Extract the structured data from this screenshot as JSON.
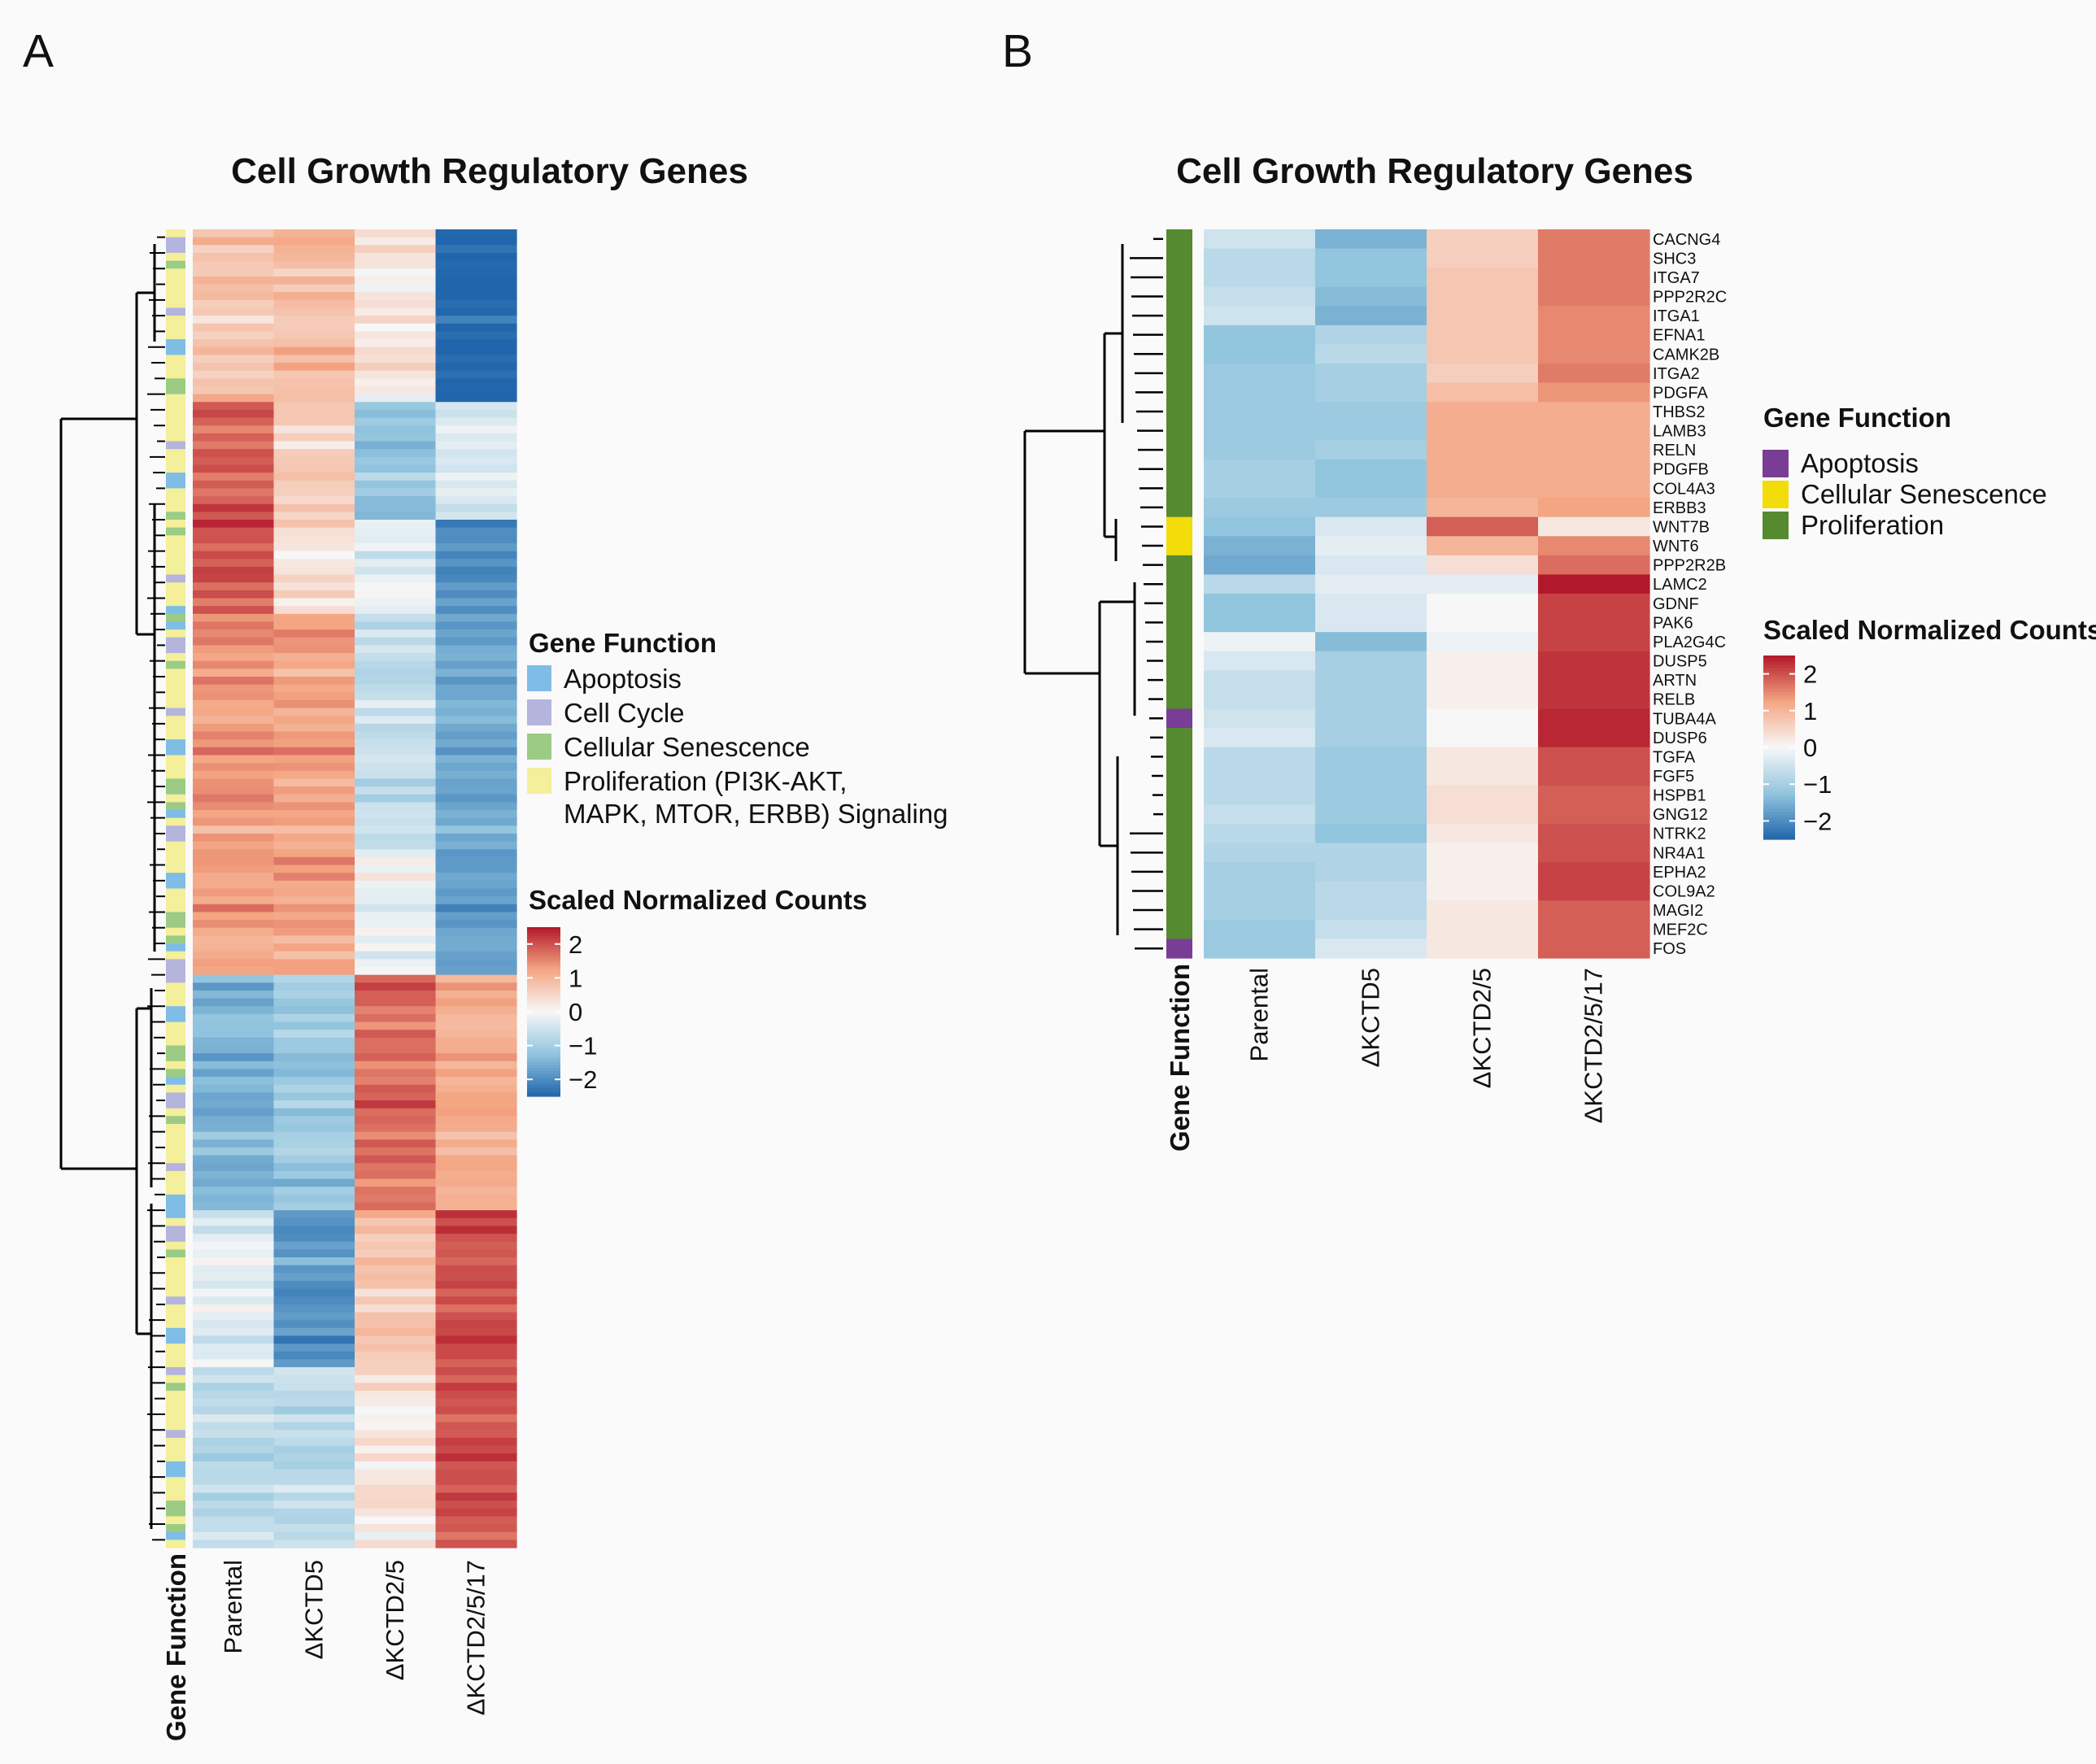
{
  "chart_data": [
    {
      "type": "heatmap",
      "panel_label": "A",
      "title": "Cell Growth Regulatory Genes",
      "columns": [
        "Parental",
        "ΔKCTD5",
        "ΔKCTD2/5",
        "ΔKCTD2/5/17"
      ],
      "annotation_label": "Gene Function",
      "row_count": 168,
      "gene_function_legend": {
        "title": "Gene Function",
        "items": [
          {
            "label": "Apoptosis",
            "color": "#7fbde6"
          },
          {
            "label": "Cell Cycle",
            "color": "#b4b4dd"
          },
          {
            "label": "Cellular Senescence",
            "color": "#9ccb86"
          },
          {
            "label_lines": [
              "Proliferation (PI3K-AKT,",
              "MAPK, MTOR, ERBB) Signaling"
            ],
            "color": "#f3ef9a"
          }
        ]
      },
      "color_scale": {
        "title": "Scaled Normalized Counts",
        "ticks": [
          "2",
          "1",
          "0",
          "−1",
          "−2"
        ],
        "min": -2,
        "max": 2
      },
      "row_blocks": [
        {
          "rows": 22,
          "values": [
            0.6,
            0.7,
            0.2,
            -2.0
          ]
        },
        {
          "rows": 15,
          "values": [
            1.5,
            0.5,
            -1.0,
            -0.3
          ]
        },
        {
          "rows": 12,
          "values": [
            1.6,
            0.3,
            -0.2,
            -1.6
          ]
        },
        {
          "rows": 30,
          "values": [
            1.1,
            1.0,
            -0.5,
            -1.3
          ]
        },
        {
          "rows": 16,
          "values": [
            1.0,
            1.0,
            -0.1,
            -1.4
          ]
        },
        {
          "rows": 30,
          "values": [
            -1.2,
            -0.9,
            1.4,
            0.9
          ]
        },
        {
          "rows": 20,
          "values": [
            -0.2,
            -1.5,
            0.6,
            1.6
          ]
        },
        {
          "rows": 23,
          "values": [
            -0.6,
            -0.6,
            0.2,
            1.6
          ]
        }
      ]
    },
    {
      "type": "heatmap",
      "panel_label": "B",
      "title": "Cell Growth Regulatory Genes",
      "columns": [
        "Parental",
        "ΔKCTD5",
        "ΔKCTD2/5",
        "ΔKCTD2/5/17"
      ],
      "annotation_label": "Gene Function",
      "gene_function_legend": {
        "title": "Gene Function",
        "items": [
          {
            "label": "Apoptosis",
            "color": "#7a3d96"
          },
          {
            "label": "Cellular Senescence",
            "color": "#f2dc0a"
          },
          {
            "label": "Proliferation",
            "color": "#558a30"
          }
        ]
      },
      "color_scale": {
        "title": "Scaled Normalized Counts",
        "ticks": [
          "2",
          "1",
          "0",
          "−1",
          "−2"
        ],
        "min": -2,
        "max": 2
      },
      "rows": [
        {
          "gene": "CACNG4",
          "function": "Proliferation",
          "values": [
            -0.4,
            -1.2,
            0.5,
            1.3
          ]
        },
        {
          "gene": "SHC3",
          "function": "Proliferation",
          "values": [
            -0.6,
            -1.0,
            0.5,
            1.3
          ]
        },
        {
          "gene": "ITGA7",
          "function": "Proliferation",
          "values": [
            -0.6,
            -1.0,
            0.6,
            1.3
          ]
        },
        {
          "gene": "PPP2R2C",
          "function": "Proliferation",
          "values": [
            -0.5,
            -1.1,
            0.6,
            1.3
          ]
        },
        {
          "gene": "ITGA1",
          "function": "Proliferation",
          "values": [
            -0.4,
            -1.2,
            0.6,
            1.2
          ]
        },
        {
          "gene": "EFNA1",
          "function": "Proliferation",
          "values": [
            -1.0,
            -0.7,
            0.6,
            1.2
          ]
        },
        {
          "gene": "CAMK2B",
          "function": "Proliferation",
          "values": [
            -1.0,
            -0.6,
            0.6,
            1.2
          ]
        },
        {
          "gene": "ITGA2",
          "function": "Proliferation",
          "values": [
            -0.9,
            -0.8,
            0.5,
            1.3
          ]
        },
        {
          "gene": "PDGFA",
          "function": "Proliferation",
          "values": [
            -0.9,
            -0.8,
            0.7,
            1.1
          ]
        },
        {
          "gene": "THBS2",
          "function": "Proliferation",
          "values": [
            -0.9,
            -0.9,
            0.9,
            0.9
          ]
        },
        {
          "gene": "LAMB3",
          "function": "Proliferation",
          "values": [
            -0.9,
            -0.9,
            0.9,
            0.9
          ]
        },
        {
          "gene": "RELN",
          "function": "Proliferation",
          "values": [
            -0.9,
            -0.8,
            0.9,
            0.9
          ]
        },
        {
          "gene": "PDGFB",
          "function": "Proliferation",
          "values": [
            -0.8,
            -1.0,
            0.9,
            0.9
          ]
        },
        {
          "gene": "COL4A3",
          "function": "Proliferation",
          "values": [
            -0.8,
            -1.0,
            0.9,
            0.9
          ]
        },
        {
          "gene": "ERBB3",
          "function": "Proliferation",
          "values": [
            -0.9,
            -0.9,
            0.8,
            1.0
          ]
        },
        {
          "gene": "WNT7B",
          "function": "Cellular Senescence",
          "values": [
            -1.0,
            -0.3,
            1.5,
            0.2
          ]
        },
        {
          "gene": "WNT6",
          "function": "Cellular Senescence",
          "values": [
            -1.2,
            -0.2,
            0.8,
            1.2
          ]
        },
        {
          "gene": "PPP2R2B",
          "function": "Proliferation",
          "values": [
            -1.3,
            -0.3,
            0.3,
            1.4
          ]
        },
        {
          "gene": "LAMC2",
          "function": "Proliferation",
          "values": [
            -0.6,
            -0.2,
            -0.2,
            2.0
          ]
        },
        {
          "gene": "GDNF",
          "function": "Proliferation",
          "values": [
            -1.0,
            -0.3,
            0.0,
            1.7
          ]
        },
        {
          "gene": "PAK6",
          "function": "Proliferation",
          "values": [
            -1.0,
            -0.3,
            0.0,
            1.7
          ]
        },
        {
          "gene": "PLA2G4C",
          "function": "Proliferation",
          "values": [
            -0.1,
            -1.1,
            -0.1,
            1.7
          ]
        },
        {
          "gene": "DUSP5",
          "function": "Proliferation",
          "values": [
            -0.3,
            -0.8,
            0.1,
            1.8
          ]
        },
        {
          "gene": "ARTN",
          "function": "Proliferation",
          "values": [
            -0.5,
            -0.8,
            0.1,
            1.8
          ]
        },
        {
          "gene": "RELB",
          "function": "Proliferation",
          "values": [
            -0.5,
            -0.8,
            0.1,
            1.8
          ]
        },
        {
          "gene": "TUBA4A",
          "function": "Apoptosis",
          "values": [
            -0.4,
            -0.8,
            0.0,
            1.9
          ]
        },
        {
          "gene": "DUSP6",
          "function": "Proliferation",
          "values": [
            -0.3,
            -0.8,
            0.0,
            1.9
          ]
        },
        {
          "gene": "TGFA",
          "function": "Proliferation",
          "values": [
            -0.6,
            -0.9,
            0.2,
            1.6
          ]
        },
        {
          "gene": "FGF5",
          "function": "Proliferation",
          "values": [
            -0.6,
            -0.9,
            0.2,
            1.6
          ]
        },
        {
          "gene": "HSPB1",
          "function": "Proliferation",
          "values": [
            -0.6,
            -0.9,
            0.3,
            1.5
          ]
        },
        {
          "gene": "GNG12",
          "function": "Proliferation",
          "values": [
            -0.5,
            -0.9,
            0.3,
            1.5
          ]
        },
        {
          "gene": "NTRK2",
          "function": "Proliferation",
          "values": [
            -0.6,
            -1.0,
            0.2,
            1.6
          ]
        },
        {
          "gene": "NR4A1",
          "function": "Proliferation",
          "values": [
            -0.7,
            -0.7,
            0.1,
            1.6
          ]
        },
        {
          "gene": "EPHA2",
          "function": "Proliferation",
          "values": [
            -0.8,
            -0.7,
            0.1,
            1.7
          ]
        },
        {
          "gene": "COL9A2",
          "function": "Proliferation",
          "values": [
            -0.8,
            -0.6,
            0.1,
            1.7
          ]
        },
        {
          "gene": "MAGI2",
          "function": "Proliferation",
          "values": [
            -0.8,
            -0.6,
            0.2,
            1.5
          ]
        },
        {
          "gene": "MEF2C",
          "function": "Proliferation",
          "values": [
            -0.9,
            -0.5,
            0.2,
            1.5
          ]
        },
        {
          "gene": "FOS",
          "function": "Apoptosis",
          "values": [
            -0.9,
            -0.3,
            0.2,
            1.5
          ]
        }
      ]
    }
  ]
}
